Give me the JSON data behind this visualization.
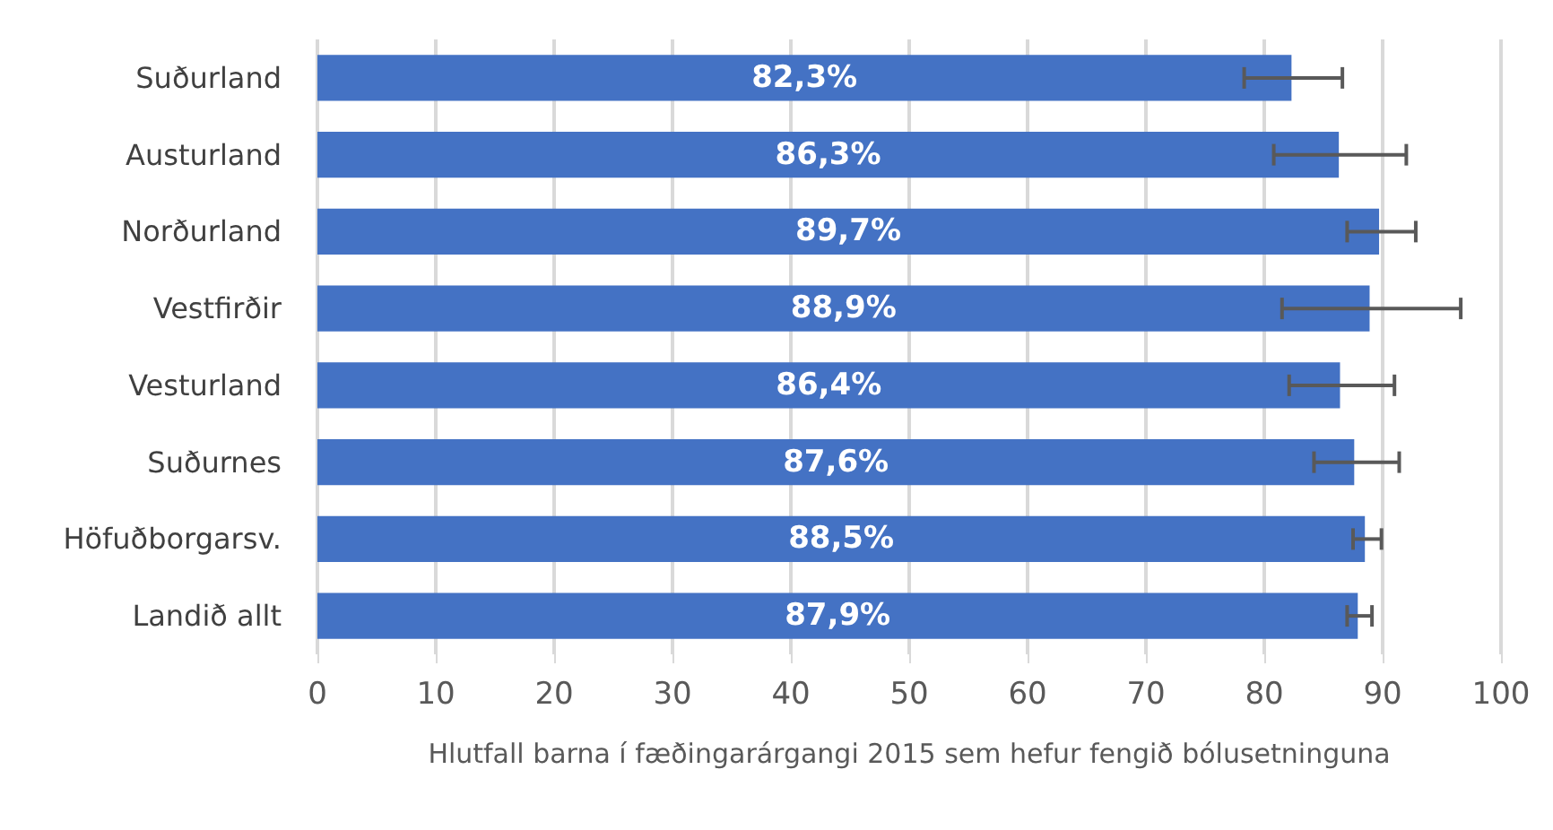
{
  "chart_data": {
    "type": "bar",
    "orientation": "horizontal",
    "xlabel": "Hlutfall barna í fæðingarárgangi 2015 sem hefur fengið bólusetninguna",
    "categories": [
      "Suðurland",
      "Austurland",
      "Norðurland",
      "Vestfirðir",
      "Vesturland",
      "Suðurnes",
      "Höfuðborgarsv.",
      "Landið allt"
    ],
    "series": [
      {
        "color": "#4472c4",
        "values": [
          82.3,
          86.3,
          89.7,
          88.9,
          86.4,
          87.6,
          88.5,
          87.9
        ],
        "value_labels": [
          "82,3%",
          "86,3%",
          "89,7%",
          "88,9%",
          "86,4%",
          "87,6%",
          "88,5%",
          "87,9%"
        ],
        "errors": [
          [
            78.3,
            86.6
          ],
          [
            80.8,
            92.0
          ],
          [
            87.0,
            92.8
          ],
          [
            81.5,
            96.6
          ],
          [
            82.1,
            91.0
          ],
          [
            84.2,
            91.4
          ],
          [
            87.5,
            89.9
          ],
          [
            87.0,
            89.1
          ]
        ]
      }
    ],
    "xlim": [
      0,
      100
    ],
    "xticks": [
      0,
      10,
      20,
      30,
      40,
      50,
      60,
      70,
      80,
      90,
      100
    ],
    "grid": "x"
  }
}
